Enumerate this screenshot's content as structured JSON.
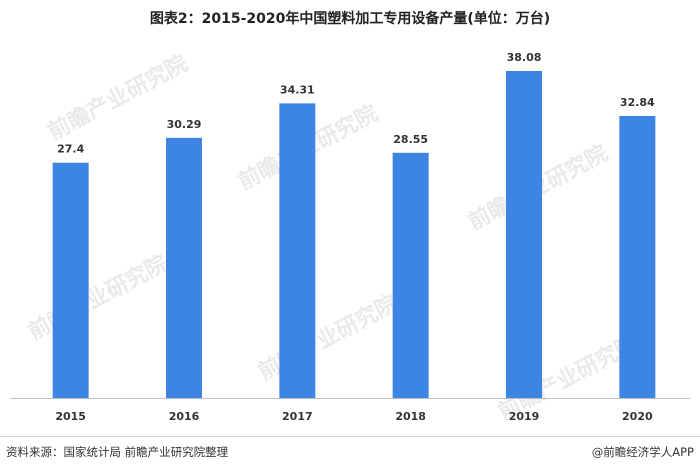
{
  "title": "图表2：2015-2020年中国塑料加工专用设备产量(单位：万台)",
  "source": "资料来源：国家统计局 前瞻产业研究院整理",
  "credit": "@前瞻经济学人APP",
  "watermark": "前瞻产业研究院",
  "colors": {
    "bar": "#3d85e3",
    "axis": "#bfbfbf"
  },
  "chart_data": {
    "type": "bar",
    "title": "图表2：2015-2020年中国塑料加工专用设备产量(单位：万台)",
    "categories": [
      "2015",
      "2016",
      "2017",
      "2018",
      "2019",
      "2020"
    ],
    "values": [
      27.4,
      30.29,
      34.31,
      28.55,
      38.08,
      32.84
    ],
    "data_labels": [
      "27.4",
      "30.29",
      "34.31",
      "28.55",
      "38.08",
      "32.84"
    ],
    "xlabel": "",
    "ylabel": "",
    "ylim": [
      0,
      40
    ],
    "grid": false,
    "legend": "none"
  }
}
